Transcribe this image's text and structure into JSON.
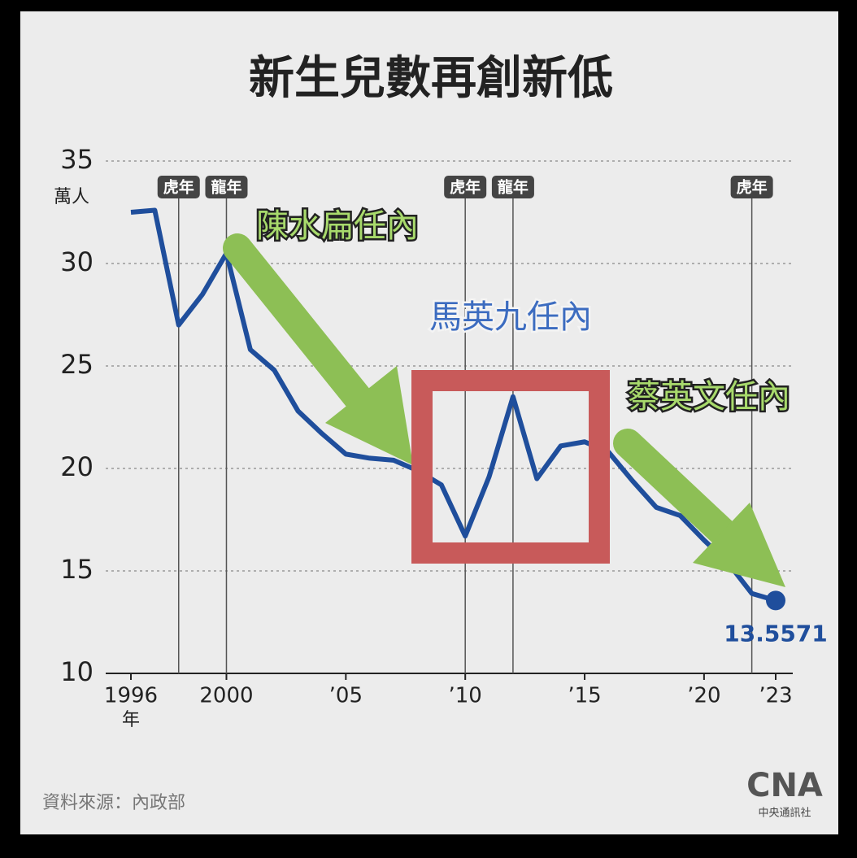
{
  "chart_data": {
    "type": "line",
    "title": "新生兒數再創新低",
    "y_unit_label": "萬人",
    "x_unit_label": "年",
    "x": [
      1996,
      1997,
      1998,
      1999,
      2000,
      2001,
      2002,
      2003,
      2004,
      2005,
      2006,
      2007,
      2008,
      2009,
      2010,
      2011,
      2012,
      2013,
      2014,
      2015,
      2016,
      2017,
      2018,
      2019,
      2020,
      2021,
      2022,
      2023
    ],
    "values": [
      32.5,
      32.6,
      27.0,
      28.5,
      30.5,
      25.8,
      24.8,
      22.8,
      21.7,
      20.7,
      20.5,
      20.4,
      19.9,
      19.2,
      16.7,
      19.6,
      23.5,
      19.5,
      21.1,
      21.3,
      20.8,
      19.4,
      18.1,
      17.7,
      16.5,
      15.4,
      13.9,
      13.5571
    ],
    "color": "#1f4e9c",
    "xlim": [
      1996,
      2023
    ],
    "ylim": [
      10,
      35
    ],
    "xticks": [
      1996,
      2000,
      {
        "value": 2005,
        "label": "’05"
      },
      {
        "value": 2010,
        "label": "’10"
      },
      {
        "value": 2015,
        "label": "’15"
      },
      {
        "value": 2020,
        "label": "’20"
      },
      {
        "value": 2023,
        "label": "’23"
      }
    ],
    "yticks": [
      10,
      15,
      20,
      25,
      30,
      35
    ],
    "grid": true,
    "year_markers": [
      {
        "x": 1998,
        "label": "虎年"
      },
      {
        "x": 2000,
        "label": "龍年"
      },
      {
        "x": 2010,
        "label": "虎年"
      },
      {
        "x": 2012,
        "label": "龍年"
      },
      {
        "x": 2022,
        "label": "虎年"
      }
    ],
    "annotations": [
      "陳水扁任內",
      "馬英九任內",
      "蔡英文任內"
    ],
    "source": "資料來源：內政部",
    "logo": "CNA",
    "logo_caption": "中央通訊社"
  }
}
